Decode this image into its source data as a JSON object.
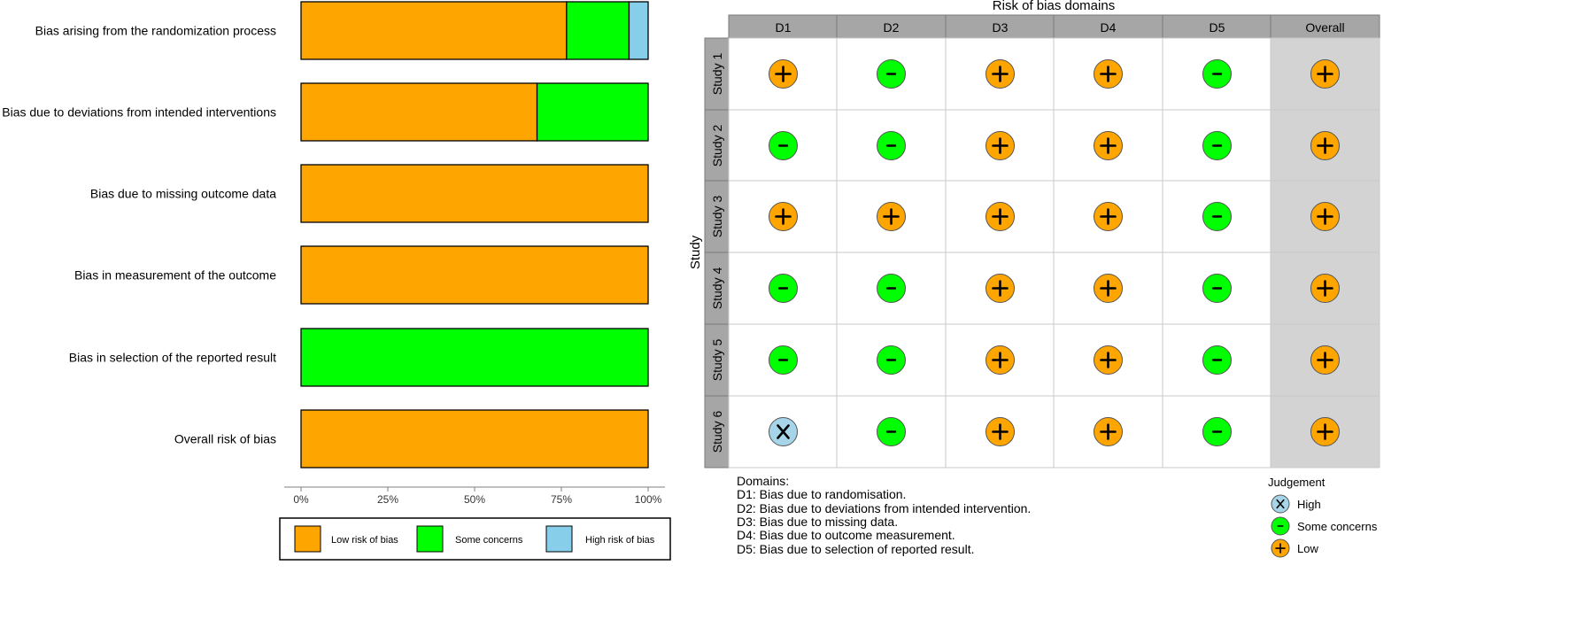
{
  "chart_data": [
    {
      "type": "bar",
      "orientation": "horizontal",
      "stacked": true,
      "categories": [
        "Bias arising from the randomization process",
        "Bias due to deviations from intended interventions",
        "Bias due to missing outcome data",
        "Bias in measurement of the outcome",
        "Bias in selection of the reported result",
        "Overall risk of bias"
      ],
      "series": [
        {
          "name": "Low risk of bias",
          "color": "#FFA500",
          "values": [
            76.5,
            68.0,
            100,
            100,
            0,
            100
          ]
        },
        {
          "name": "Some concerns",
          "color": "#00FF00",
          "values": [
            18.0,
            32.0,
            0,
            0,
            100,
            0
          ]
        },
        {
          "name": "High risk of bias",
          "color": "#87CEEB",
          "values": [
            5.5,
            0,
            0,
            0,
            0,
            0
          ]
        }
      ],
      "xlim": [
        0,
        100
      ],
      "xticks": [
        "0%",
        "25%",
        "50%",
        "75%",
        "100%"
      ],
      "legend_position": "bottom"
    },
    {
      "type": "table",
      "title": "Risk of bias domains",
      "ylabel": "Study",
      "columns": [
        "D1",
        "D2",
        "D3",
        "D4",
        "D5",
        "Overall"
      ],
      "rows": [
        "Study 1",
        "Study 2",
        "Study 3",
        "Study 4",
        "Study 5",
        "Study 6"
      ],
      "judgements": [
        [
          "+",
          "-",
          "+",
          "+",
          "-",
          "+"
        ],
        [
          "-",
          "-",
          "+",
          "+",
          "-",
          "+"
        ],
        [
          "+",
          "+",
          "+",
          "+",
          "-",
          "+"
        ],
        [
          "-",
          "-",
          "+",
          "+",
          "-",
          "+"
        ],
        [
          "-",
          "-",
          "+",
          "+",
          "-",
          "+"
        ],
        [
          "X",
          "-",
          "+",
          "+",
          "-",
          "+"
        ]
      ],
      "judgement_styles": {
        "+": {
          "color": "#FFA500"
        },
        "-": {
          "color": "#00FF00"
        },
        "X": {
          "color": "#A6D5EA"
        }
      },
      "domains_title": "Domains:",
      "domains": [
        "D1: Bias due to randomisation.",
        "D2: Bias due to deviations from intended intervention.",
        "D3: Bias due to missing data.",
        "D4: Bias due to outcome measurement.",
        "D5: Bias due to selection of reported result."
      ],
      "legend_title": "Judgement",
      "legend": [
        {
          "symbol": "X",
          "label": "High"
        },
        {
          "symbol": "-",
          "label": "Some concerns"
        },
        {
          "symbol": "+",
          "label": "Low"
        }
      ]
    }
  ]
}
